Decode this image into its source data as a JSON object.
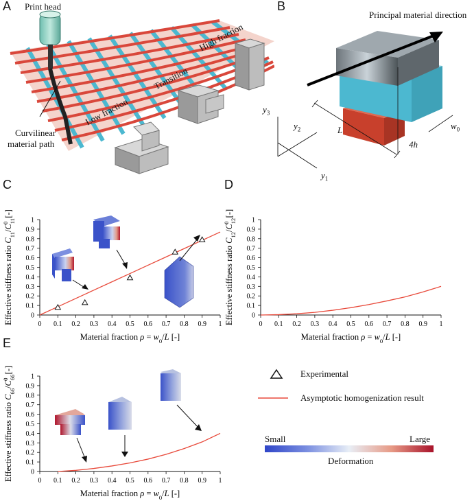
{
  "panels": {
    "A": {
      "letter": "A",
      "print_head": "Print head",
      "curvilinear_l1": "Curvilinear",
      "curvilinear_l2": "material path",
      "low_fraction": "Low fraction",
      "transition": "Transition",
      "high_fraction": "High fraction"
    },
    "B": {
      "letter": "B",
      "principal": "Principal material direction",
      "y3": "y",
      "y3_sub": "3",
      "y2": "y",
      "y2_sub": "2",
      "y1": "y",
      "y1_sub": "1",
      "L": "L",
      "w0": "w",
      "w0_sub": "0",
      "h4": "4h"
    },
    "C": {
      "letter": "C"
    },
    "D": {
      "letter": "D"
    },
    "E": {
      "letter": "E"
    }
  },
  "legend": {
    "experimental": "Experimental",
    "asymptotic": "Asymptotic homogenization result",
    "small": "Small",
    "large": "Large",
    "deformation": "Deformation"
  },
  "colors": {
    "red_line": "#e8493a",
    "fiber_red": "#d9473b",
    "fiber_blue": "#4cb8d0",
    "gradient_blue": "#3a52c9",
    "gradient_white": "#e9eef5",
    "gradient_red": "#b0162c"
  },
  "chart_data": [
    {
      "id": "C",
      "type": "line",
      "xlabel": "Material fraction ρ = w0/L [-]",
      "ylabel": "Effective stiffness ratio C11/C11^0 [-]",
      "xlim": [
        0,
        1
      ],
      "ylim": [
        0,
        1
      ],
      "xticks": [
        "0",
        "0.1",
        "0.2",
        "0.3",
        "0.4",
        "0.5",
        "0.6",
        "0.7",
        "0.8",
        "0.9",
        "1"
      ],
      "yticks": [
        "0",
        "0.1",
        "0.2",
        "0.3",
        "0.4",
        "0.5",
        "0.6",
        "0.7",
        "0.8",
        "0.9",
        "1"
      ],
      "series": [
        {
          "name": "Asymptotic homogenization result",
          "style": "line",
          "x": [
            0,
            0.1,
            0.2,
            0.3,
            0.4,
            0.5,
            0.6,
            0.7,
            0.8,
            0.9,
            1.0
          ],
          "y": [
            0,
            0.087,
            0.174,
            0.261,
            0.348,
            0.435,
            0.522,
            0.609,
            0.696,
            0.783,
            0.87
          ]
        },
        {
          "name": "Experimental",
          "style": "triangle",
          "x": [
            0.1,
            0.25,
            0.5,
            0.75,
            0.9
          ],
          "y": [
            0.08,
            0.13,
            0.39,
            0.66,
            0.79
          ]
        }
      ]
    },
    {
      "id": "D",
      "type": "line",
      "xlabel": "Material fraction ρ = w0/L [-]",
      "ylabel": "Effective stiffness ratio C12/C12^0 [-]",
      "xlim": [
        0,
        1
      ],
      "ylim": [
        0,
        1
      ],
      "xticks": [
        "0",
        "0.1",
        "0.2",
        "0.3",
        "0.4",
        "0.5",
        "0.6",
        "0.7",
        "0.8",
        "0.9",
        "1"
      ],
      "yticks": [
        "0",
        "0.1",
        "0.2",
        "0.3",
        "0.4",
        "0.5",
        "0.6",
        "0.7",
        "0.8",
        "0.9",
        "1"
      ],
      "series": [
        {
          "name": "Asymptotic homogenization result",
          "style": "line",
          "x": [
            0,
            0.1,
            0.2,
            0.3,
            0.4,
            0.5,
            0.6,
            0.7,
            0.8,
            0.9,
            1.0
          ],
          "y": [
            0,
            0.004,
            0.013,
            0.028,
            0.05,
            0.077,
            0.11,
            0.148,
            0.19,
            0.242,
            0.3
          ]
        }
      ]
    },
    {
      "id": "E",
      "type": "line",
      "xlabel": "Material fraction ρ = w0/L [-]",
      "ylabel": "Effective stiffness ratio C66/C66^0 [-]",
      "xlim": [
        0,
        1
      ],
      "ylim": [
        0,
        1
      ],
      "xticks": [
        "0",
        "0.1",
        "0.2",
        "0.3",
        "0.4",
        "0.5",
        "0.6",
        "0.7",
        "0.8",
        "0.9",
        "1"
      ],
      "yticks": [
        "0",
        "0.1",
        "0.2",
        "0.3",
        "0.4",
        "0.5",
        "0.6",
        "0.7",
        "0.8",
        "0.9",
        "1"
      ],
      "series": [
        {
          "name": "Asymptotic homogenization result",
          "style": "line",
          "x": [
            0.1,
            0.2,
            0.3,
            0.4,
            0.5,
            0.6,
            0.7,
            0.8,
            0.9,
            1.0
          ],
          "y": [
            0.0,
            0.012,
            0.032,
            0.058,
            0.09,
            0.13,
            0.18,
            0.24,
            0.31,
            0.4
          ]
        }
      ]
    }
  ]
}
